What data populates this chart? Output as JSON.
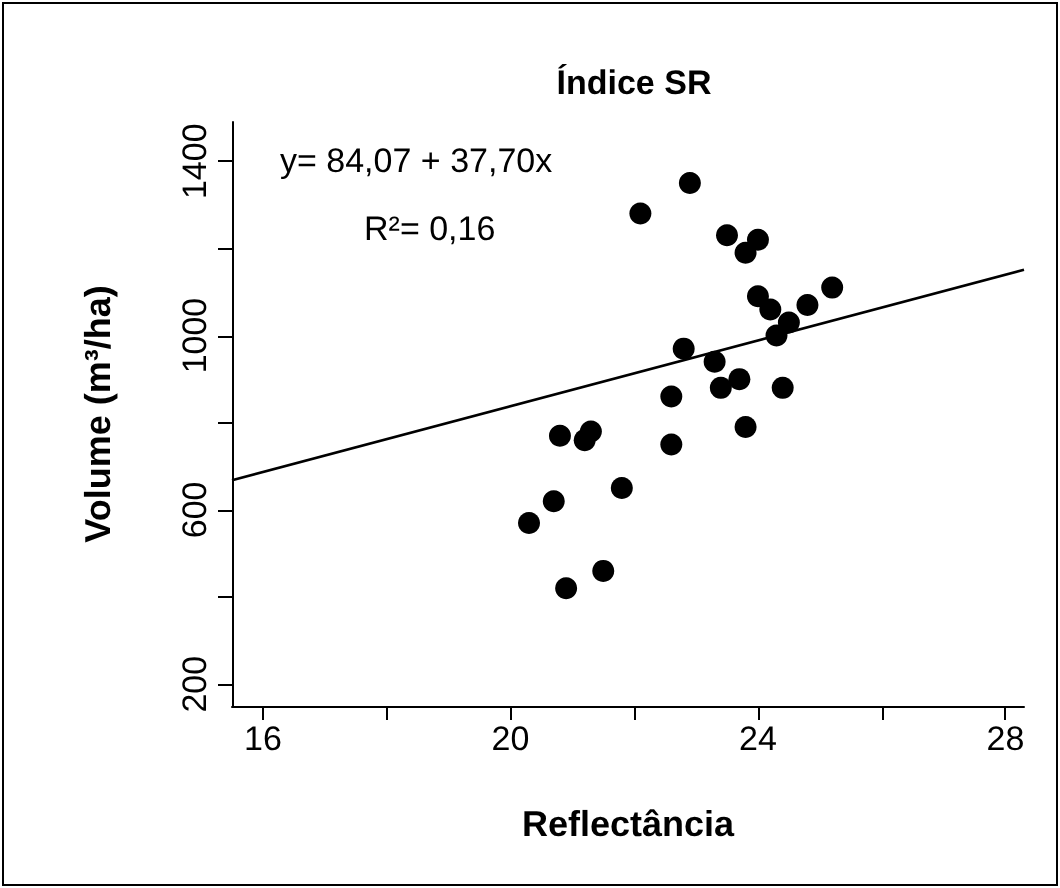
{
  "chart_data": {
    "type": "scatter",
    "title": "Índice SR",
    "xlabel": "Reflectância",
    "ylabel": "Volume (m³/ha)",
    "annotations": [
      "y= 84,07 + 37,70x",
      "R²= 0,16"
    ],
    "x": [
      22.9,
      22.1,
      23.5,
      24.0,
      23.8,
      25.2,
      24.0,
      24.2,
      24.8,
      24.5,
      24.3,
      22.8,
      23.3,
      23.7,
      23.4,
      24.4,
      22.6,
      23.8,
      22.6,
      20.8,
      21.2,
      21.3,
      21.8,
      20.7,
      20.3,
      21.5,
      20.9
    ],
    "series": [
      {
        "color": "#000000",
        "marker": "circle",
        "values": [
          1350,
          1280,
          1230,
          1220,
          1190,
          1110,
          1090,
          1060,
          1070,
          1030,
          1000,
          970,
          940,
          900,
          880,
          880,
          860,
          790,
          750,
          770,
          760,
          780,
          650,
          620,
          570,
          460,
          420
        ]
      },
      {
        "type": "line",
        "color": "#000000",
        "line_style": "solid",
        "marker": "none",
        "x": [
          15.5,
          28.3
        ],
        "values": [
          668,
          1151
        ]
      }
    ],
    "xlim": [
      15.5,
      28.3
    ],
    "xticks": [
      16,
      {
        "value": 18,
        "label": null
      },
      20,
      {
        "value": 22,
        "label": null
      },
      24,
      {
        "value": 26,
        "label": null
      },
      28
    ],
    "ylim": [
      150,
      1490
    ],
    "yticks": [
      200,
      {
        "value": 400,
        "label": null
      },
      600,
      {
        "value": 800,
        "label": null
      },
      1000,
      {
        "value": 1200,
        "label": null
      },
      1400
    ],
    "grid": false
  }
}
